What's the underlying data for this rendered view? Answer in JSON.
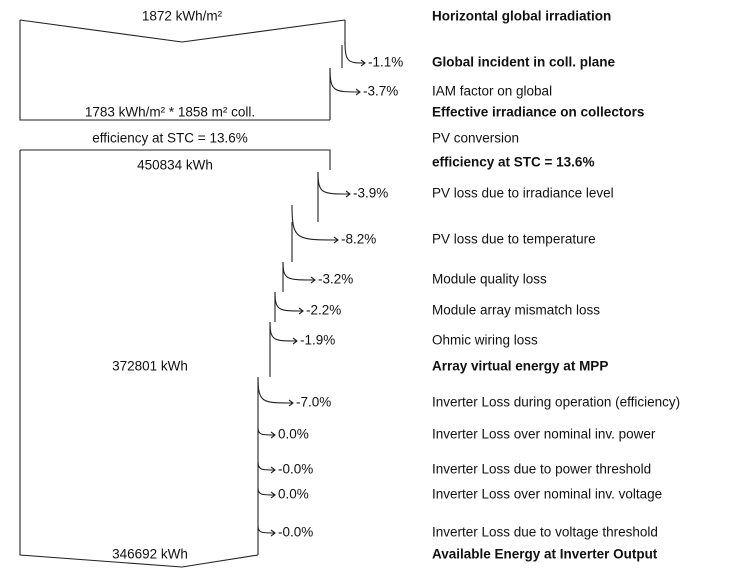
{
  "diagram": {
    "box_values": [
      "1872 kWh/m²",
      "1783 kWh/m² * 1858 m² coll.",
      "efficiency at STC = 13.6%",
      "450834 kWh",
      "372801 kWh",
      "346692 kWh"
    ],
    "labels": [
      {
        "text": "Horizontal global irradiation",
        "bold": true
      },
      {
        "text": "Global incident in coll. plane",
        "bold": true
      },
      {
        "text": "IAM factor on global",
        "bold": false
      },
      {
        "text": "Effective irradiance on collectors",
        "bold": true
      },
      {
        "text": "PV conversion",
        "bold": false
      },
      {
        "text": "efficiency at STC = 13.6%",
        "bold": true
      },
      {
        "text": "PV loss due to irradiance level",
        "bold": false
      },
      {
        "text": "PV loss due to temperature",
        "bold": false
      },
      {
        "text": "Module quality loss",
        "bold": false
      },
      {
        "text": "Module array mismatch loss",
        "bold": false
      },
      {
        "text": "Ohmic wiring loss",
        "bold": false
      },
      {
        "text": "Array virtual energy at MPP",
        "bold": true
      },
      {
        "text": "Inverter Loss during operation (efficiency)",
        "bold": false
      },
      {
        "text": "Inverter Loss over nominal inv. power",
        "bold": false
      },
      {
        "text": "Inverter Loss due to power threshold",
        "bold": false
      },
      {
        "text": "Inverter Loss over nominal inv. voltage",
        "bold": false
      },
      {
        "text": "Inverter Loss due to voltage threshold",
        "bold": false
      },
      {
        "text": "Available Energy at Inverter Output",
        "bold": true
      }
    ],
    "losses": [
      "-1.1%",
      "-3.7%",
      "-3.9%",
      "-8.2%",
      "-3.2%",
      "-2.2%",
      "-1.9%",
      "-7.0%",
      "0.0%",
      "-0.0%",
      "0.0%",
      "-0.0%"
    ]
  }
}
